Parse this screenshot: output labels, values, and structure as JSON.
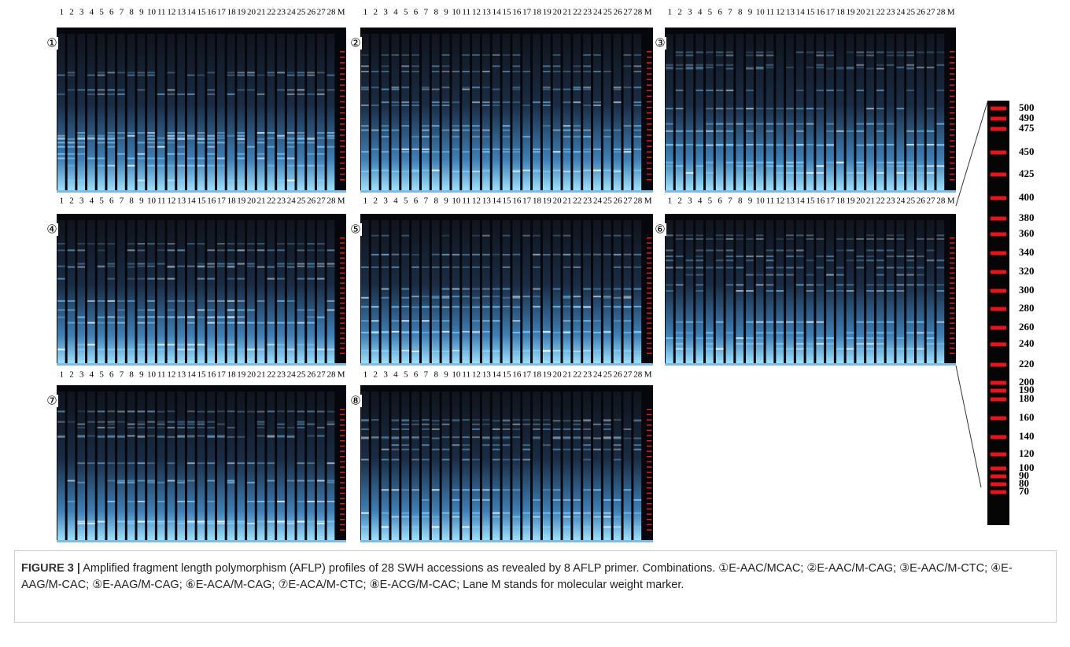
{
  "figure": {
    "panels": [
      {
        "number": "①"
      },
      {
        "number": "②"
      },
      {
        "number": "③"
      },
      {
        "number": "④"
      },
      {
        "number": "⑤"
      },
      {
        "number": "⑥"
      },
      {
        "number": "⑦"
      },
      {
        "number": "⑧"
      }
    ],
    "lanes": [
      "1",
      "2",
      "3",
      "4",
      "5",
      "6",
      "7",
      "8",
      "9",
      "10",
      "11",
      "12",
      "13",
      "14",
      "15",
      "16",
      "17",
      "18",
      "19",
      "20",
      "21",
      "22",
      "23",
      "24",
      "25",
      "26",
      "27",
      "28",
      "M"
    ],
    "marker_sizes": [
      "500",
      "490",
      "475",
      "450",
      "425",
      "400",
      "380",
      "360",
      "340",
      "320",
      "300",
      "280",
      "260",
      "240",
      "220",
      "200",
      "190",
      "180",
      "160",
      "140",
      "120",
      "100",
      "90",
      "80",
      "70"
    ],
    "caption": {
      "label": "FIGURE 3 |",
      "text": "Amplified fragment length polymorphism (AFLP) profiles of 28 SWH accessions as revealed by 8 AFLP primer. Combinations. ①E-AAC/MCAC; ②E-AAC/M-CAG; ③E-AAC/M-CTC; ④E-AAG/M-CAC; ⑤E-AAG/M-CAG; ⑥E-ACA/M-CAG; ⑦E-ACA/M-CTC; ⑧E-ACG/M-CAC; Lane M stands for molecular weight marker."
    }
  }
}
